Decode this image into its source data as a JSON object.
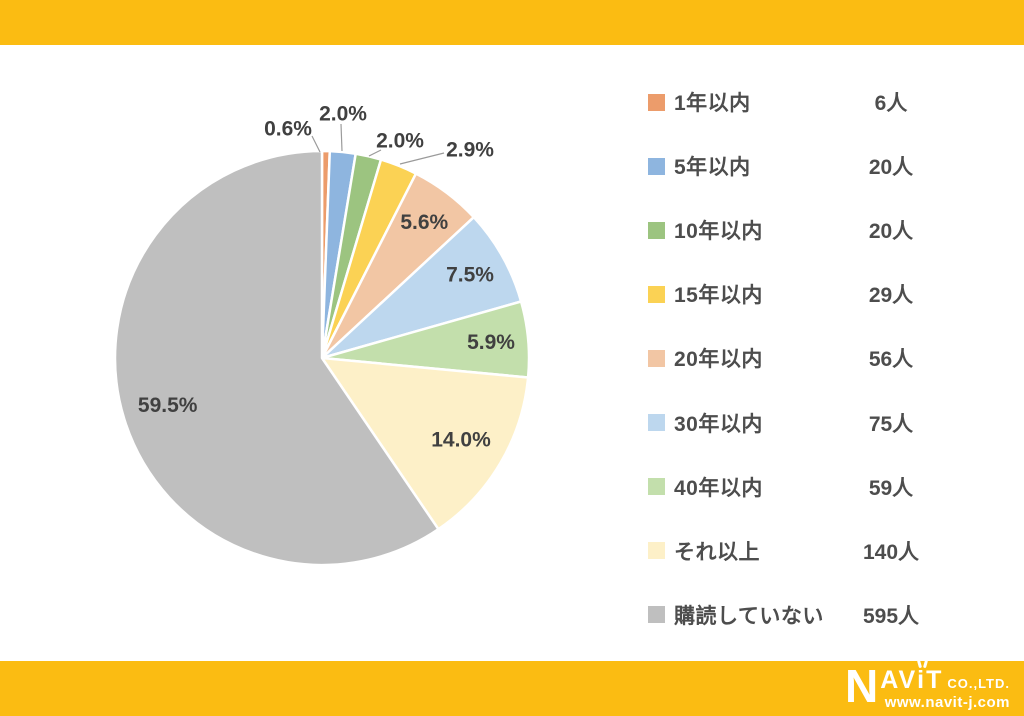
{
  "theme": {
    "band_color": "#FBBC12",
    "pct_label_color": "#404040",
    "legend_text_color": "#4d4d4d",
    "slice_stroke": "#ffffff"
  },
  "chart_data": {
    "type": "pie",
    "title": "",
    "categories": [
      "1年以内",
      "5年以内",
      "10年以内",
      "15年以内",
      "20年以内",
      "30年以内",
      "40年以内",
      "それ以上",
      "購読していない"
    ],
    "values": [
      6,
      20,
      20,
      29,
      56,
      75,
      59,
      140,
      595
    ],
    "total": 1000,
    "unit": "人",
    "counts_display": [
      "6人",
      "20人",
      "20人",
      "29人",
      "56人",
      "75人",
      "59人",
      "140人",
      "595人"
    ],
    "percent_labels": [
      "0.6%",
      "2.0%",
      "2.0%",
      "2.9%",
      "5.6%",
      "7.5%",
      "5.9%",
      "14.0%",
      "59.5%"
    ],
    "colors": [
      "#EC9C6B",
      "#8EB5DF",
      "#9CC480",
      "#FBD254",
      "#F2C6A4",
      "#BDD7EE",
      "#C3DFAC",
      "#FDF0C8",
      "#BFBFBF"
    ],
    "start_angle_deg": 0,
    "direction": "clockwise",
    "legend_position": "right"
  },
  "footer": {
    "brand_n": "N",
    "brand_av": "AV",
    "brand_i": "i",
    "brand_t": "T",
    "company_suffix": "CO.,LTD.",
    "url": "www.navit-j.com"
  }
}
